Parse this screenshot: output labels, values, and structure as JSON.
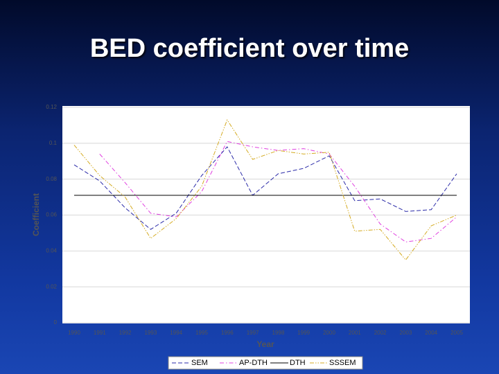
{
  "title": "BED coefficient over time",
  "chart_data": {
    "type": "line",
    "x_label": "Year",
    "y_label": "Coefficient",
    "categories": [
      "1990",
      "1991",
      "1992",
      "1993",
      "1994",
      "1995",
      "1996",
      "1997",
      "1998",
      "1999",
      "2000",
      "2001",
      "2002",
      "2003",
      "2004",
      "2005"
    ],
    "ylim": [
      0,
      0.12
    ],
    "yticks": [
      0,
      0.02,
      0.04,
      0.06,
      0.08,
      0.1,
      0.12
    ],
    "grid": true,
    "legend": "bottom",
    "series": [
      {
        "name": "SEM",
        "color": "#2a2aa8",
        "style": "dashed",
        "values": [
          0.088,
          0.079,
          0.064,
          0.052,
          0.061,
          0.082,
          0.098,
          0.071,
          0.083,
          0.086,
          0.093,
          0.068,
          0.069,
          0.062,
          0.063,
          0.083
        ]
      },
      {
        "name": "AP-DTH",
        "color": "#e040e0",
        "style": "dashdot",
        "values": [
          null,
          0.094,
          0.078,
          0.061,
          0.059,
          0.073,
          0.101,
          0.098,
          0.096,
          0.097,
          0.094,
          0.076,
          0.055,
          0.045,
          0.047,
          0.059
        ]
      },
      {
        "name": "DTH",
        "color": "#000000",
        "style": "solid",
        "values": [
          0.071,
          0.071,
          0.071,
          0.071,
          0.071,
          0.071,
          0.071,
          0.071,
          0.071,
          0.071,
          0.071,
          0.071,
          0.071,
          0.071,
          0.071,
          0.071
        ]
      },
      {
        "name": "SSSEM",
        "color": "#d4aa20",
        "style": "dashdotdot",
        "values": [
          0.099,
          0.082,
          0.07,
          0.047,
          0.058,
          0.076,
          0.113,
          0.091,
          0.096,
          0.094,
          0.095,
          0.051,
          0.052,
          0.035,
          0.054,
          0.06
        ]
      }
    ]
  }
}
